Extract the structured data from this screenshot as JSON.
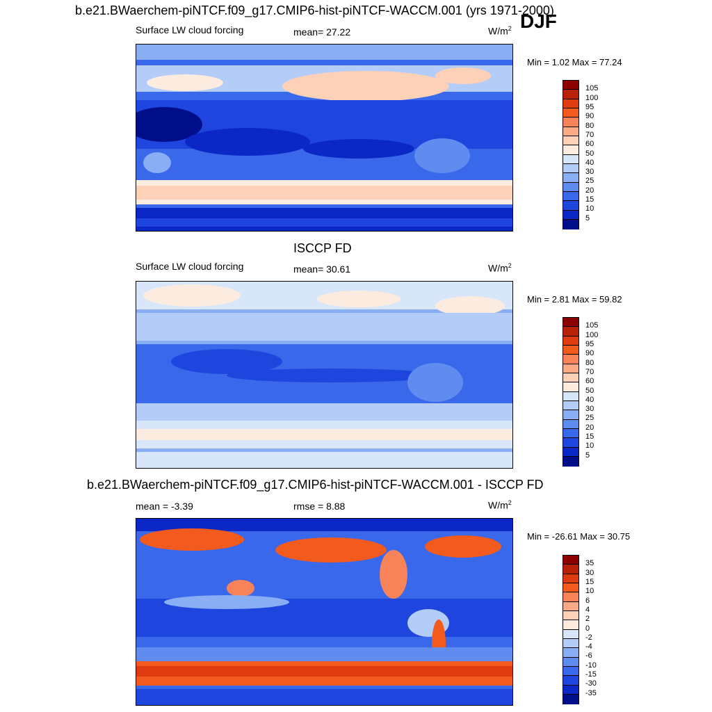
{
  "main_title": "b.e21.BWaerchem-piNTCF.f09_g17.CMIP6-hist-piNTCF-WACCM.001 (yrs 1971-2000)",
  "season": "DJF",
  "panels": [
    {
      "title": "",
      "left_label": "Surface LW cloud forcing",
      "center_label": "mean=  27.22",
      "units": "W/m",
      "units_sup": "2",
      "minmax": "Min =   1.02 Max =  77.24",
      "colorbar_labels": [
        "105",
        "100",
        "95",
        "90",
        "80",
        "70",
        "60",
        "50",
        "40",
        "30",
        "25",
        "20",
        "15",
        "10",
        "5"
      ]
    },
    {
      "title": "ISCCP FD",
      "left_label": "Surface LW cloud forcing",
      "center_label": "mean=  30.61",
      "units": "W/m",
      "units_sup": "2",
      "minmax": "Min =   2.81 Max =  59.82",
      "colorbar_labels": [
        "105",
        "100",
        "95",
        "90",
        "80",
        "70",
        "60",
        "50",
        "40",
        "30",
        "25",
        "20",
        "15",
        "10",
        "5"
      ]
    },
    {
      "title": "b.e21.BWaerchem-piNTCF.f09_g17.CMIP6-hist-piNTCF-WACCM.001 - ISCCP FD",
      "left_label": "mean =  -3.39",
      "center_label": "rmse =   8.88",
      "units": "W/m",
      "units_sup": "2",
      "minmax": "Min = -26.61 Max =  30.75",
      "colorbar_labels": [
        "35",
        "30",
        "15",
        "10",
        "6",
        "4",
        "2",
        "0",
        "-2",
        "-4",
        "-6",
        "-10",
        "-15",
        "-30",
        "-35"
      ]
    }
  ],
  "colors": {
    "scale": [
      "#8b0000",
      "#b8200a",
      "#de3c10",
      "#f35a1e",
      "#f88358",
      "#fbaa88",
      "#fdd0b8",
      "#fcece0",
      "#d8e6fa",
      "#b4ccf8",
      "#8aaef4",
      "#5f8cee",
      "#3a68ea",
      "#1e46df",
      "#0b27c6",
      "#000e8a"
    ]
  }
}
